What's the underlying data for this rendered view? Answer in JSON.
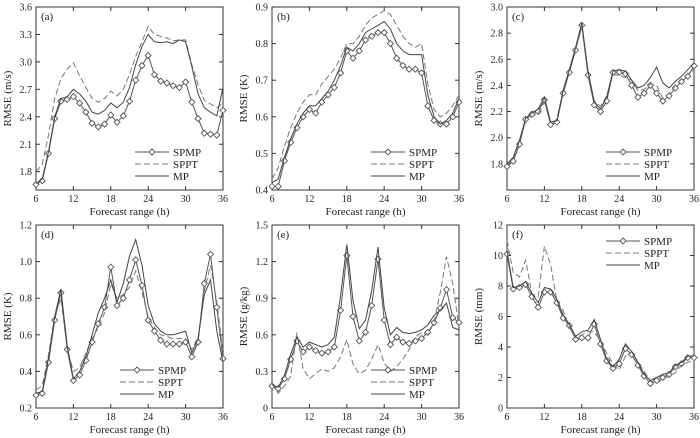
{
  "figure": {
    "panel_count": 6
  },
  "chart_data": [
    {
      "type": "line",
      "panel": "(a)",
      "xlabel": "Forecast range (h)",
      "ylabel": "RMSE (m/s)",
      "xlim": [
        6,
        36
      ],
      "ylim": [
        1.6,
        3.6
      ],
      "xticks": [
        6,
        12,
        18,
        24,
        30,
        36
      ],
      "yticks": [
        1.8,
        2.1,
        2.4,
        2.7,
        3.0,
        3.3,
        3.6
      ],
      "ytick_labels": [
        "1.8",
        "2.1",
        "2.4",
        "2.7",
        "3.0",
        "3.3",
        "3.6"
      ],
      "legend": [
        "SPMP",
        "SPPT",
        "MP"
      ],
      "legend_position": "bottom-right",
      "x": [
        6,
        7,
        8,
        9,
        10,
        11,
        12,
        13,
        14,
        15,
        16,
        17,
        18,
        19,
        20,
        21,
        22,
        23,
        24,
        25,
        26,
        27,
        28,
        29,
        30,
        31,
        32,
        33,
        34,
        35,
        36
      ],
      "series": [
        {
          "name": "SPMP",
          "values": [
            1.66,
            1.7,
            2.0,
            2.38,
            2.57,
            2.59,
            2.62,
            2.55,
            2.45,
            2.33,
            2.29,
            2.32,
            2.42,
            2.34,
            2.41,
            2.57,
            2.8,
            2.96,
            3.07,
            2.86,
            2.79,
            2.77,
            2.74,
            2.72,
            2.78,
            2.56,
            2.38,
            2.22,
            2.21,
            2.2,
            2.47
          ]
        },
        {
          "name": "SPPT",
          "values": [
            1.8,
            1.88,
            2.2,
            2.6,
            2.82,
            2.92,
            2.99,
            2.85,
            2.72,
            2.6,
            2.56,
            2.6,
            2.68,
            2.63,
            2.7,
            2.86,
            3.06,
            3.22,
            3.39,
            3.3,
            3.28,
            3.26,
            3.23,
            3.24,
            3.24,
            2.97,
            2.75,
            2.58,
            2.54,
            2.5,
            2.55
          ]
        },
        {
          "name": "MP",
          "values": [
            1.67,
            1.72,
            2.02,
            2.4,
            2.6,
            2.62,
            2.7,
            2.65,
            2.57,
            2.45,
            2.43,
            2.47,
            2.55,
            2.5,
            2.56,
            2.72,
            2.97,
            3.17,
            3.3,
            3.22,
            3.21,
            3.22,
            3.2,
            3.24,
            3.22,
            2.95,
            2.65,
            2.5,
            2.45,
            2.41,
            2.72
          ]
        }
      ]
    },
    {
      "type": "line",
      "panel": "(b)",
      "xlabel": "Forecast range (h)",
      "ylabel": "RMSE (K)",
      "xlim": [
        6,
        36
      ],
      "ylim": [
        0.4,
        0.9
      ],
      "xticks": [
        6,
        12,
        18,
        24,
        30,
        36
      ],
      "yticks": [
        0.4,
        0.5,
        0.6,
        0.7,
        0.8,
        0.9
      ],
      "ytick_labels": [
        "0.4",
        "0.5",
        "0.6",
        "0.7",
        "0.8",
        "0.9"
      ],
      "legend": [
        "SPMP",
        "SPPT",
        "MP"
      ],
      "legend_position": "bottom-right",
      "x": [
        6,
        7,
        8,
        9,
        10,
        11,
        12,
        13,
        14,
        15,
        16,
        17,
        18,
        19,
        20,
        21,
        22,
        23,
        24,
        25,
        26,
        27,
        28,
        29,
        30,
        31,
        32,
        33,
        34,
        35,
        36
      ],
      "series": [
        {
          "name": "SPMP",
          "values": [
            0.41,
            0.41,
            0.48,
            0.53,
            0.57,
            0.6,
            0.62,
            0.61,
            0.64,
            0.66,
            0.68,
            0.72,
            0.78,
            0.76,
            0.78,
            0.81,
            0.82,
            0.83,
            0.83,
            0.8,
            0.76,
            0.74,
            0.73,
            0.73,
            0.72,
            0.63,
            0.59,
            0.58,
            0.58,
            0.6,
            0.64
          ]
        },
        {
          "name": "SPPT",
          "values": [
            0.43,
            0.46,
            0.52,
            0.57,
            0.61,
            0.64,
            0.66,
            0.66,
            0.69,
            0.71,
            0.73,
            0.76,
            0.8,
            0.8,
            0.82,
            0.85,
            0.87,
            0.88,
            0.89,
            0.88,
            0.85,
            0.82,
            0.8,
            0.79,
            0.8,
            0.69,
            0.62,
            0.6,
            0.61,
            0.63,
            0.66
          ]
        },
        {
          "name": "MP",
          "values": [
            0.42,
            0.43,
            0.49,
            0.54,
            0.58,
            0.61,
            0.63,
            0.63,
            0.65,
            0.67,
            0.7,
            0.74,
            0.79,
            0.78,
            0.8,
            0.83,
            0.84,
            0.85,
            0.86,
            0.84,
            0.8,
            0.78,
            0.77,
            0.77,
            0.77,
            0.66,
            0.6,
            0.58,
            0.59,
            0.61,
            0.65
          ]
        }
      ]
    },
    {
      "type": "line",
      "panel": "(c)",
      "xlabel": "Forecast range (h)",
      "ylabel": "RMSE (m/s)",
      "xlim": [
        6,
        36
      ],
      "ylim": [
        1.6,
        3.0
      ],
      "xticks": [
        6,
        12,
        18,
        24,
        30,
        36
      ],
      "yticks": [
        1.8,
        2.0,
        2.2,
        2.4,
        2.6,
        2.8,
        3.0
      ],
      "ytick_labels": [
        "1.8",
        "2.0",
        "2.2",
        "2.4",
        "2.6",
        "2.8",
        "3.0"
      ],
      "legend": [
        "SPMP",
        "SPPT",
        "MP"
      ],
      "legend_position": "bottom-right",
      "x": [
        6,
        7,
        8,
        9,
        10,
        11,
        12,
        13,
        14,
        15,
        16,
        17,
        18,
        19,
        20,
        21,
        22,
        23,
        24,
        25,
        26,
        27,
        28,
        29,
        30,
        31,
        32,
        33,
        34,
        35,
        36
      ],
      "series": [
        {
          "name": "SPMP",
          "values": [
            1.78,
            1.82,
            1.95,
            2.14,
            2.18,
            2.2,
            2.29,
            2.1,
            2.12,
            2.34,
            2.5,
            2.67,
            2.86,
            2.48,
            2.25,
            2.2,
            2.28,
            2.5,
            2.5,
            2.49,
            2.4,
            2.31,
            2.34,
            2.4,
            2.34,
            2.28,
            2.32,
            2.38,
            2.43,
            2.47,
            2.55
          ]
        },
        {
          "name": "SPPT",
          "values": [
            1.79,
            1.84,
            1.98,
            2.12,
            2.16,
            2.19,
            2.27,
            2.11,
            2.14,
            2.36,
            2.52,
            2.68,
            2.84,
            2.5,
            2.28,
            2.24,
            2.32,
            2.48,
            2.48,
            2.46,
            2.44,
            2.36,
            2.37,
            2.41,
            2.4,
            2.3,
            2.34,
            2.4,
            2.45,
            2.49,
            2.52
          ]
        },
        {
          "name": "MP",
          "values": [
            1.8,
            1.85,
            1.98,
            2.15,
            2.19,
            2.22,
            2.31,
            2.12,
            2.13,
            2.36,
            2.52,
            2.69,
            2.88,
            2.51,
            2.27,
            2.22,
            2.31,
            2.51,
            2.52,
            2.51,
            2.44,
            2.38,
            2.4,
            2.46,
            2.54,
            2.42,
            2.38,
            2.43,
            2.47,
            2.52,
            2.57
          ]
        }
      ]
    },
    {
      "type": "line",
      "panel": "(d)",
      "xlabel": "Forecast range (h)",
      "ylabel": "RMSE (K)",
      "xlim": [
        6,
        36
      ],
      "ylim": [
        0.2,
        1.2
      ],
      "xticks": [
        6,
        12,
        18,
        24,
        30,
        36
      ],
      "yticks": [
        0.2,
        0.4,
        0.6,
        0.8,
        1.0,
        1.2
      ],
      "ytick_labels": [
        "0.2",
        "0.4",
        "0.6",
        "0.8",
        "1.0",
        "1.2"
      ],
      "legend": [
        "SPMP",
        "SPPT",
        "MP"
      ],
      "legend_position": "bottom-center",
      "x": [
        6,
        7,
        8,
        9,
        10,
        11,
        12,
        13,
        14,
        15,
        16,
        17,
        18,
        19,
        20,
        21,
        22,
        23,
        24,
        25,
        26,
        27,
        28,
        29,
        30,
        31,
        32,
        33,
        34,
        35,
        36
      ],
      "series": [
        {
          "name": "SPMP",
          "values": [
            0.27,
            0.28,
            0.45,
            0.68,
            0.83,
            0.52,
            0.35,
            0.38,
            0.46,
            0.56,
            0.66,
            0.75,
            0.97,
            0.76,
            0.8,
            0.9,
            1.01,
            0.87,
            0.68,
            0.62,
            0.57,
            0.55,
            0.55,
            0.55,
            0.56,
            0.48,
            0.56,
            0.88,
            1.04,
            0.75,
            0.47
          ]
        },
        {
          "name": "SPPT",
          "values": [
            0.3,
            0.32,
            0.49,
            0.7,
            0.8,
            0.52,
            0.4,
            0.42,
            0.5,
            0.58,
            0.64,
            0.72,
            0.88,
            0.8,
            0.82,
            0.86,
            0.95,
            0.83,
            0.7,
            0.64,
            0.6,
            0.59,
            0.58,
            0.58,
            0.58,
            0.52,
            0.58,
            0.84,
            0.98,
            0.78,
            0.5
          ]
        },
        {
          "name": "MP",
          "values": [
            0.28,
            0.29,
            0.47,
            0.7,
            0.85,
            0.54,
            0.36,
            0.4,
            0.48,
            0.6,
            0.72,
            0.8,
            0.9,
            0.78,
            0.88,
            1.03,
            1.12,
            0.98,
            0.76,
            0.66,
            0.62,
            0.6,
            0.6,
            0.61,
            0.62,
            0.5,
            0.58,
            0.82,
            0.9,
            0.62,
            0.45
          ]
        }
      ]
    },
    {
      "type": "line",
      "panel": "(e)",
      "xlabel": "Forecast range (h)",
      "ylabel": "RMSE (g/kg)",
      "xlim": [
        6,
        36
      ],
      "ylim": [
        0,
        1.5
      ],
      "xticks": [
        6,
        12,
        18,
        24,
        30,
        36
      ],
      "yticks": [
        0,
        0.3,
        0.6,
        0.9,
        1.2,
        1.5
      ],
      "ytick_labels": [
        "0",
        "0.3",
        "0.6",
        "0.9",
        "1.2",
        "1.5"
      ],
      "legend": [
        "SPMP",
        "SPPT",
        "MP"
      ],
      "legend_position": "bottom-right",
      "x": [
        6,
        7,
        8,
        9,
        10,
        11,
        12,
        13,
        14,
        15,
        16,
        17,
        18,
        19,
        20,
        21,
        22,
        23,
        24,
        25,
        26,
        27,
        28,
        29,
        30,
        31,
        32,
        33,
        34,
        35,
        36
      ],
      "series": [
        {
          "name": "SPMP",
          "values": [
            0.18,
            0.16,
            0.24,
            0.4,
            0.55,
            0.46,
            0.5,
            0.47,
            0.45,
            0.46,
            0.5,
            0.8,
            1.25,
            0.75,
            0.55,
            0.62,
            0.84,
            1.22,
            0.72,
            0.52,
            0.58,
            0.54,
            0.53,
            0.55,
            0.57,
            0.62,
            0.7,
            0.82,
            0.97,
            0.74,
            0.7
          ]
        },
        {
          "name": "SPPT",
          "values": [
            0.2,
            0.12,
            0.18,
            0.26,
            0.62,
            0.32,
            0.24,
            0.28,
            0.32,
            0.3,
            0.33,
            0.42,
            0.56,
            0.36,
            0.28,
            0.31,
            0.4,
            0.52,
            0.37,
            0.3,
            0.34,
            0.4,
            0.48,
            0.58,
            0.62,
            0.6,
            0.7,
            0.95,
            1.24,
            1.02,
            0.66
          ]
        },
        {
          "name": "MP",
          "values": [
            0.19,
            0.17,
            0.27,
            0.44,
            0.58,
            0.5,
            0.54,
            0.52,
            0.5,
            0.52,
            0.58,
            0.92,
            1.34,
            0.88,
            0.65,
            0.72,
            0.96,
            1.32,
            0.82,
            0.6,
            0.66,
            0.62,
            0.61,
            0.62,
            0.64,
            0.68,
            0.76,
            0.8,
            0.86,
            0.66,
            0.64
          ]
        }
      ]
    },
    {
      "type": "line",
      "panel": "(f)",
      "xlabel": "Forecast range (h)",
      "ylabel": "RMSE (mm)",
      "xlim": [
        6,
        36
      ],
      "ylim": [
        0,
        12
      ],
      "xticks": [
        6,
        12,
        18,
        24,
        30,
        36
      ],
      "yticks": [
        0,
        2,
        4,
        6,
        8,
        10,
        12
      ],
      "ytick_labels": [
        "0",
        "2",
        "4",
        "6",
        "8",
        "10",
        "12"
      ],
      "legend": [
        "SPMP",
        "SPPT",
        "MP"
      ],
      "legend_position": "top-right",
      "x": [
        6,
        7,
        8,
        9,
        10,
        11,
        12,
        13,
        14,
        15,
        16,
        17,
        18,
        19,
        20,
        21,
        22,
        23,
        24,
        25,
        26,
        27,
        28,
        29,
        30,
        31,
        32,
        33,
        34,
        35,
        36
      ],
      "series": [
        {
          "name": "SPMP",
          "values": [
            10.1,
            7.8,
            7.9,
            8.1,
            7.3,
            6.6,
            7.6,
            7.6,
            6.9,
            5.9,
            5.4,
            4.5,
            4.6,
            4.6,
            5.5,
            4.2,
            3.1,
            2.6,
            2.9,
            3.9,
            3.5,
            2.8,
            2.1,
            1.6,
            1.8,
            2.0,
            2.2,
            2.7,
            2.9,
            3.3,
            3.3
          ]
        },
        {
          "name": "SPPT",
          "values": [
            11.0,
            8.9,
            8.6,
            9.7,
            7.5,
            7.3,
            10.6,
            9.4,
            7.0,
            6.4,
            5.3,
            4.6,
            4.8,
            5.0,
            5.0,
            4.4,
            3.6,
            2.9,
            2.5,
            3.4,
            3.7,
            3.0,
            2.4,
            1.8,
            1.6,
            1.9,
            2.1,
            2.3,
            2.8,
            3.0,
            3.1
          ]
        },
        {
          "name": "MP",
          "values": [
            10.3,
            7.9,
            8.0,
            8.3,
            7.5,
            6.9,
            7.9,
            7.8,
            7.1,
            6.1,
            5.5,
            4.7,
            5.0,
            5.1,
            5.8,
            4.5,
            3.2,
            2.7,
            3.2,
            4.2,
            3.7,
            3.0,
            2.2,
            1.8,
            2.0,
            2.2,
            2.3,
            2.8,
            3.0,
            3.4,
            3.4
          ]
        }
      ]
    }
  ]
}
